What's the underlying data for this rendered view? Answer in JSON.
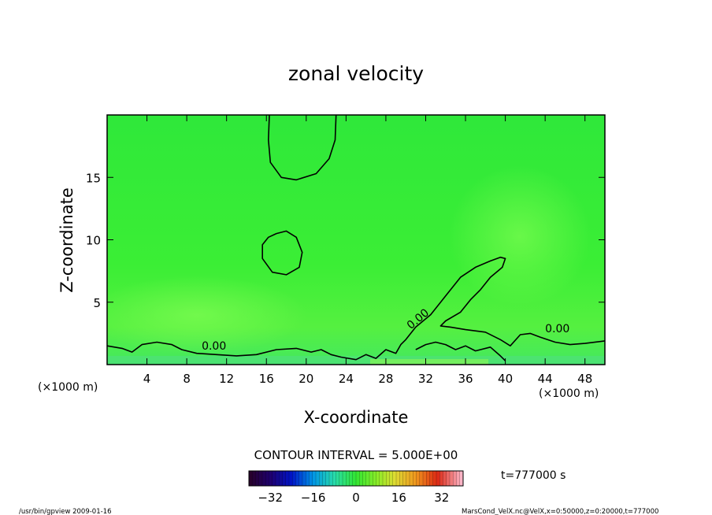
{
  "chart_data": {
    "type": "heatmap",
    "title": "zonal velocity",
    "xlabel": "X-coordinate",
    "ylabel": "Z-coordinate",
    "x_unit_left": "(×1000 m)",
    "x_unit_right": "(×1000 m)",
    "xlim": [
      0,
      50
    ],
    "ylim": [
      0,
      20
    ],
    "x_ticks": [
      4,
      8,
      12,
      16,
      20,
      24,
      28,
      32,
      36,
      40,
      44,
      48
    ],
    "y_ticks": [
      5,
      10,
      15
    ],
    "contour_label": "0.00",
    "contour_interval_text": "CONTOUR INTERVAL = 5.000E+00",
    "time_text": "t=777000 s",
    "colorbar": {
      "range": [
        -40,
        40
      ],
      "ticks": [
        -32,
        -16,
        0,
        16,
        32
      ],
      "tick_labels": [
        "−32",
        "−16",
        "0",
        "16",
        "32"
      ]
    },
    "zero_contours": [
      [
        [
          23,
          20
        ],
        [
          22.9,
          18
        ],
        [
          22.3,
          16.5
        ],
        [
          21,
          15.3
        ],
        [
          19,
          14.8
        ],
        [
          17.5,
          15
        ],
        [
          16.4,
          16.2
        ],
        [
          16.2,
          18
        ],
        [
          16.3,
          20
        ]
      ],
      [
        [
          17,
          10.5
        ],
        [
          18,
          10.7
        ],
        [
          19,
          10.2
        ],
        [
          19.6,
          9
        ],
        [
          19.3,
          7.8
        ],
        [
          18,
          7.2
        ],
        [
          16.6,
          7.4
        ],
        [
          15.6,
          8.5
        ],
        [
          15.6,
          9.6
        ],
        [
          16.2,
          10.2
        ],
        [
          17,
          10.5
        ]
      ],
      [
        [
          0,
          1.5
        ],
        [
          1.5,
          1.3
        ],
        [
          2.5,
          1
        ],
        [
          3.5,
          1.6
        ],
        [
          5,
          1.8
        ],
        [
          6.5,
          1.6
        ],
        [
          7.5,
          1.2
        ],
        [
          9,
          0.9
        ],
        [
          11,
          0.8
        ],
        [
          13,
          0.7
        ],
        [
          15,
          0.8
        ],
        [
          17,
          1.2
        ],
        [
          19,
          1.3
        ],
        [
          20.5,
          1
        ],
        [
          21.5,
          1.2
        ],
        [
          22.5,
          0.8
        ],
        [
          23.5,
          0.6
        ],
        [
          25,
          0.4
        ],
        [
          26,
          0.8
        ],
        [
          27,
          0.5
        ],
        [
          28,
          1.2
        ],
        [
          29,
          0.9
        ],
        [
          29.5,
          1.6
        ],
        [
          30,
          2
        ],
        [
          31,
          3
        ],
        [
          32.5,
          4
        ],
        [
          34,
          5.5
        ],
        [
          35.5,
          7
        ],
        [
          37,
          7.8
        ],
        [
          38.5,
          8.3
        ],
        [
          39.5,
          8.6
        ],
        [
          40,
          8.5
        ],
        [
          39.7,
          7.8
        ],
        [
          38.5,
          7
        ],
        [
          37.5,
          6
        ],
        [
          36.5,
          5.2
        ],
        [
          35.5,
          4.2
        ],
        [
          34,
          3.5
        ],
        [
          33.5,
          3.1
        ],
        [
          34.5,
          3
        ],
        [
          36,
          2.8
        ],
        [
          38,
          2.6
        ],
        [
          39.5,
          2
        ],
        [
          40.5,
          1.5
        ],
        [
          41.5,
          2.4
        ],
        [
          42.5,
          2.5
        ],
        [
          43.5,
          2.2
        ],
        [
          45,
          1.8
        ],
        [
          46.5,
          1.6
        ],
        [
          48,
          1.7
        ],
        [
          50,
          1.9
        ]
      ],
      [
        [
          31,
          1.2
        ],
        [
          32,
          1.6
        ],
        [
          33,
          1.8
        ],
        [
          34,
          1.6
        ],
        [
          35,
          1.2
        ],
        [
          36,
          1.5
        ],
        [
          37,
          1.1
        ],
        [
          38.5,
          1.4
        ],
        [
          39.5,
          0.7
        ],
        [
          40,
          0.3
        ]
      ]
    ],
    "contour_label_positions": [
      [
        9.5,
        1.2
      ],
      [
        30.5,
        2.8
      ],
      [
        44,
        2.6
      ]
    ],
    "colors": {
      "field_main": "#33ee33",
      "field_light": "#66ff44",
      "field_near_ground": "#55ee66",
      "near_ground_blue": "#44dd99",
      "frame": "#000000"
    }
  },
  "footer": {
    "left": "/usr/bin/gpview  2009-01-16",
    "right": "MarsCond_VelX.nc@VelX,x=0:50000,z=0:20000,t=777000"
  }
}
